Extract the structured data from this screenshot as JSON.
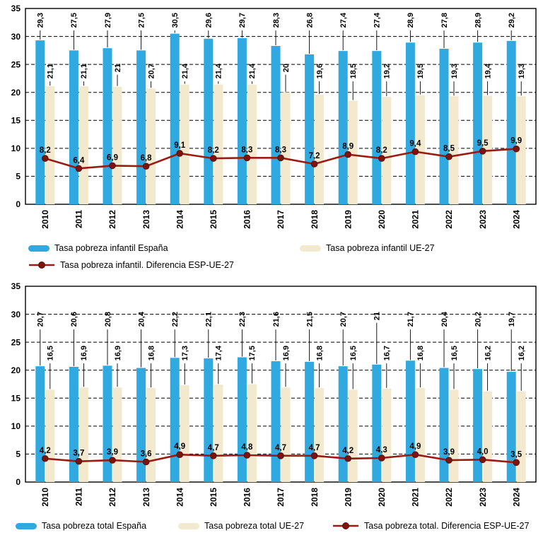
{
  "page": {
    "background": "#ffffff"
  },
  "chart_data": [
    {
      "type": "bar",
      "subtype": "grouped-bars-with-difference-line",
      "title": "",
      "categories": [
        "2010",
        "2011",
        "2012",
        "2013",
        "2014",
        "2015",
        "2016",
        "2017",
        "2018",
        "2019",
        "2020",
        "2021",
        "2022",
        "2023",
        "2024"
      ],
      "series": [
        {
          "name": "Tasa pobreza infantil España",
          "kind": "bar",
          "color": "#2FA9DF",
          "values": [
            "29,3",
            "27,5",
            "27,9",
            "27,5",
            "30,5",
            "29,6",
            "29,7",
            "28,3",
            "26,8",
            "27,4",
            "27,4",
            "28,9",
            "27,8",
            "28,9",
            "29,2"
          ]
        },
        {
          "name": "Tasa pobreza infantil UE-27",
          "kind": "bar",
          "color": "#F2E9CF",
          "values": [
            "21,1",
            "21,1",
            "21",
            "20,7",
            "21,4",
            "21,4",
            "21,4",
            "20",
            "19,6",
            "18,5",
            "19,2",
            "19,5",
            "19,3",
            "19,4",
            "19,3"
          ]
        },
        {
          "name": "Tasa pobreza infantil. Diferencia ESP-UE-27",
          "kind": "line",
          "color": "#9B1B13",
          "marker_color": "#7E120D",
          "values": [
            "8,2",
            "6,4",
            "6,9",
            "6,8",
            "9,1",
            "8,2",
            "8,3",
            "8,3",
            "7,2",
            "8,9",
            "8,2",
            "9,4",
            "8,5",
            "9,5",
            "9,9"
          ]
        }
      ],
      "ylim": [
        0,
        35
      ],
      "yticks": [
        0,
        5,
        10,
        15,
        20,
        25,
        30,
        35
      ],
      "grid": "dashed-horizontal",
      "decimal_separator": ",",
      "legend_position": "bottom"
    },
    {
      "type": "bar",
      "subtype": "grouped-bars-with-difference-line",
      "title": "",
      "categories": [
        "2010",
        "2011",
        "2012",
        "2013",
        "2014",
        "2015",
        "2016",
        "2017",
        "2018",
        "2019",
        "2020",
        "2021",
        "2022",
        "2023",
        "2024"
      ],
      "series": [
        {
          "name": "Tasa pobreza total España",
          "kind": "bar",
          "color": "#2FA9DF",
          "values": [
            "20,7",
            "20,6",
            "20,8",
            "20,4",
            "22,2",
            "22,1",
            "22,3",
            "21,6",
            "21,5",
            "20,7",
            "21",
            "21,7",
            "20,4",
            "20,2",
            "19,7"
          ]
        },
        {
          "name": "Tasa pobreza total UE-27",
          "kind": "bar",
          "color": "#F2E9CF",
          "values": [
            "16,5",
            "16,9",
            "16,9",
            "16,8",
            "17,3",
            "17,4",
            "17,5",
            "16,9",
            "16,8",
            "16,5",
            "16,7",
            "16,8",
            "16,5",
            "16,2",
            "16,2"
          ]
        },
        {
          "name": "Tasa pobreza total. Diferencia ESP-UE-27",
          "kind": "line",
          "color": "#9B1B13",
          "marker_color": "#7E120D",
          "values": [
            "4,2",
            "3,7",
            "3,9",
            "3,6",
            "4,9",
            "4,7",
            "4,8",
            "4,7",
            "4,7",
            "4,2",
            "4,3",
            "4,9",
            "3,9",
            "4,0",
            "3,5"
          ]
        }
      ],
      "ylim": [
        0,
        35
      ],
      "yticks": [
        0,
        5,
        10,
        15,
        20,
        25,
        30,
        35
      ],
      "grid": "dashed-horizontal",
      "decimal_separator": ",",
      "legend_position": "bottom"
    }
  ]
}
